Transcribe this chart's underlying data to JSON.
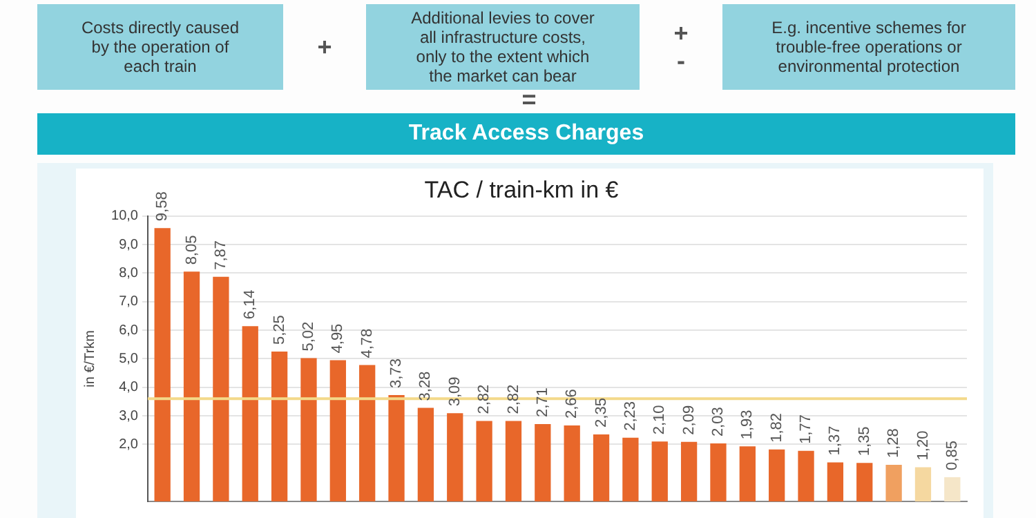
{
  "chart_data": {
    "type": "bar",
    "title": "TAC / train-km in €",
    "ylabel": "in €/Trkm",
    "annotations": [
      "Costs directly caused\nby the operation of\neach train",
      "+",
      "Additional levies to cover\nall infrastructure costs,\nonly to the extent which\nthe market can bear",
      "+\n-",
      "E.g. incentive schemes for\ntrouble-free operations or\nenvironmental protection",
      "=",
      "Track Access Charges"
    ],
    "categories": [
      null,
      null,
      null,
      null,
      null,
      null,
      null,
      null,
      null,
      null,
      null,
      null,
      null,
      null,
      null,
      null,
      null,
      null,
      null,
      null,
      null,
      null,
      null,
      null,
      null,
      null,
      null,
      null
    ],
    "values": [
      9.58,
      8.05,
      7.87,
      6.14,
      5.25,
      5.02,
      4.95,
      4.78,
      3.73,
      3.28,
      3.09,
      2.82,
      2.82,
      2.71,
      2.66,
      2.35,
      2.23,
      2.1,
      2.09,
      2.03,
      1.93,
      1.82,
      1.77,
      1.37,
      1.35,
      1.28,
      1.2,
      0.85
    ],
    "value_labels": [
      "9,58",
      "8,05",
      "7,87",
      "6,14",
      "5,25",
      "5,02",
      "4,95",
      "4,78",
      "3,73",
      "3,28",
      "3,09",
      "2,82",
      "2,82",
      "2,71",
      "2,66",
      "2,35",
      "2,23",
      "2,10",
      "2,09",
      "2,03",
      "1,93",
      "1,82",
      "1,77",
      "1,37",
      "1,35",
      "1,28",
      "1,20",
      "0,85"
    ],
    "colors": [
      "#e8672a",
      "#e8672a",
      "#e8672a",
      "#e8672a",
      "#e8672a",
      "#e8672a",
      "#e8672a",
      "#e8672a",
      "#e8672a",
      "#e8672a",
      "#e8672a",
      "#e8672a",
      "#e8672a",
      "#e8672a",
      "#e8672a",
      "#e8672a",
      "#e8672a",
      "#e8672a",
      "#e8672a",
      "#e8672a",
      "#e8672a",
      "#e8672a",
      "#e8672a",
      "#e8672a",
      "#e8672a",
      "#f0a060",
      "#f5d8a0",
      "#f5e6c8"
    ],
    "ylim": [
      0,
      10
    ],
    "yticks": [
      {
        "value": 2,
        "label": "2,0"
      },
      {
        "value": 3,
        "label": "3,0"
      },
      {
        "value": 4,
        "label": "4,0"
      },
      {
        "value": 5,
        "label": "5,0"
      },
      {
        "value": 6,
        "label": "6,0"
      },
      {
        "value": 7,
        "label": "7,0"
      },
      {
        "value": 8,
        "label": "8,0"
      },
      {
        "value": 9,
        "label": "9,0"
      },
      {
        "value": 10,
        "label": "10,0"
      }
    ],
    "ref_lines": [
      {
        "axis": "y",
        "value": 3.6,
        "color": "#f3d98a"
      }
    ],
    "grid": "y",
    "legend": false
  }
}
